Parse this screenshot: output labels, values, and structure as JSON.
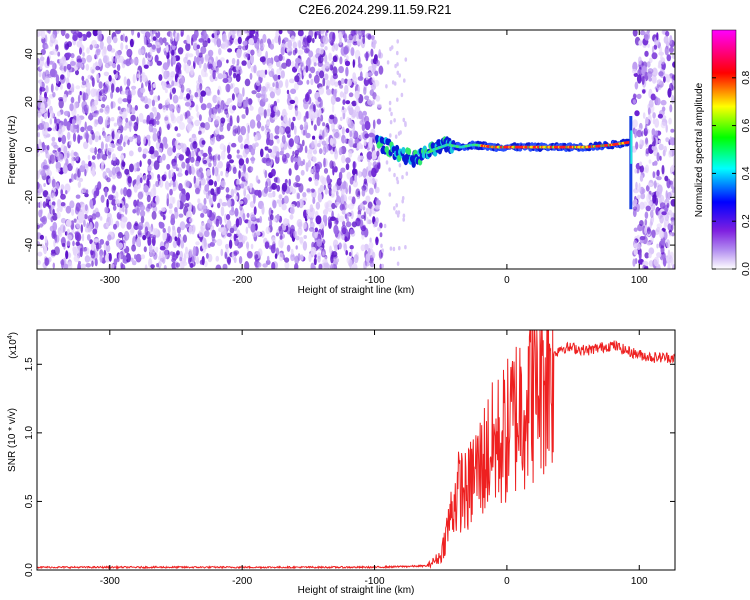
{
  "title": "C2E6.2024.299.11.59.R21",
  "chart_data": [
    {
      "type": "heatmap",
      "xlabel": "Height of straight line (km)",
      "ylabel": "Frequency (Hz)",
      "xlim": [
        -355,
        127
      ],
      "ylim": [
        -50,
        50
      ],
      "xticks": [
        -300,
        -200,
        -100,
        0,
        100
      ],
      "yticks": [
        -40,
        -20,
        0,
        20,
        40
      ],
      "colorbar": {
        "label": "Normalized spectral amplitude",
        "range": [
          0,
          1
        ],
        "ticks": [
          "0.0",
          "0.2",
          "0.4",
          "0.6",
          "0.8"
        ],
        "colors": [
          "#ffffff",
          "#8a2be2",
          "#0000ff",
          "#00ffff",
          "#00ff00",
          "#ffff00",
          "#ff0000",
          "#ff00ff"
        ]
      },
      "noise_regions": [
        [
          -355,
          -95
        ],
        [
          96,
          127
        ]
      ],
      "signal_track": [
        {
          "x": -98,
          "y": 3
        },
        {
          "x": -90,
          "y": 1
        },
        {
          "x": -80,
          "y": -2
        },
        {
          "x": -70,
          "y": -4
        },
        {
          "x": -62,
          "y": -2
        },
        {
          "x": -55,
          "y": 0
        },
        {
          "x": -45,
          "y": 2
        },
        {
          "x": -35,
          "y": 1
        },
        {
          "x": -25,
          "y": 2
        },
        {
          "x": -10,
          "y": 1
        },
        {
          "x": 0,
          "y": 1
        },
        {
          "x": 20,
          "y": 1
        },
        {
          "x": 40,
          "y": 1
        },
        {
          "x": 60,
          "y": 1
        },
        {
          "x": 80,
          "y": 2
        },
        {
          "x": 92,
          "y": 3
        }
      ]
    },
    {
      "type": "line",
      "xlabel": "Height of straight line (km)",
      "ylabel": "SNR (10 * v/v)",
      "exponent_label": "(x10",
      "exponent_power": "4",
      "exponent_close": ")",
      "xlim": [
        -355,
        127
      ],
      "ylim": [
        0,
        1.75
      ],
      "xticks": [
        -300,
        -200,
        -100,
        0,
        100
      ],
      "yticks": [
        "0.0",
        "0.5",
        "1.0",
        "1.5"
      ],
      "color": "#ee2020",
      "series": [
        {
          "x": [
            -355,
            -200,
            -100,
            -60,
            -50,
            -45,
            -40,
            -35,
            -30,
            -25,
            -20,
            -15,
            -10,
            -5,
            0,
            10,
            20,
            30,
            40,
            50,
            60,
            70,
            80,
            90,
            100,
            110,
            127
          ],
          "y": [
            0.02,
            0.02,
            0.02,
            0.03,
            0.1,
            0.3,
            0.5,
            0.6,
            0.55,
            0.7,
            0.75,
            0.85,
            0.9,
            0.95,
            1.0,
            1.2,
            1.35,
            1.5,
            1.62,
            1.62,
            1.6,
            1.62,
            1.64,
            1.6,
            1.57,
            1.55,
            1.55
          ]
        }
      ]
    }
  ]
}
